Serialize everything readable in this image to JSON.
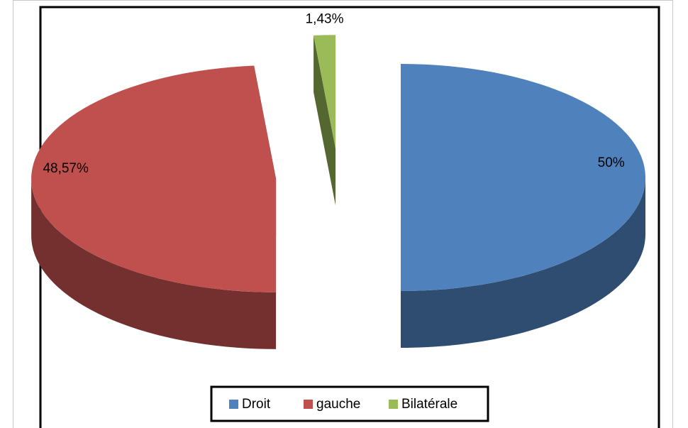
{
  "chart_data": {
    "type": "pie3d",
    "categories": [
      "Droit",
      "gauche",
      "Bilatérale"
    ],
    "values": [
      50,
      48.57,
      1.43
    ],
    "value_labels": [
      "50%",
      "48,57%",
      "1,43%"
    ],
    "colors": [
      "#4f81bd",
      "#c0504d",
      "#9bbb59"
    ],
    "legend": "bottom"
  }
}
